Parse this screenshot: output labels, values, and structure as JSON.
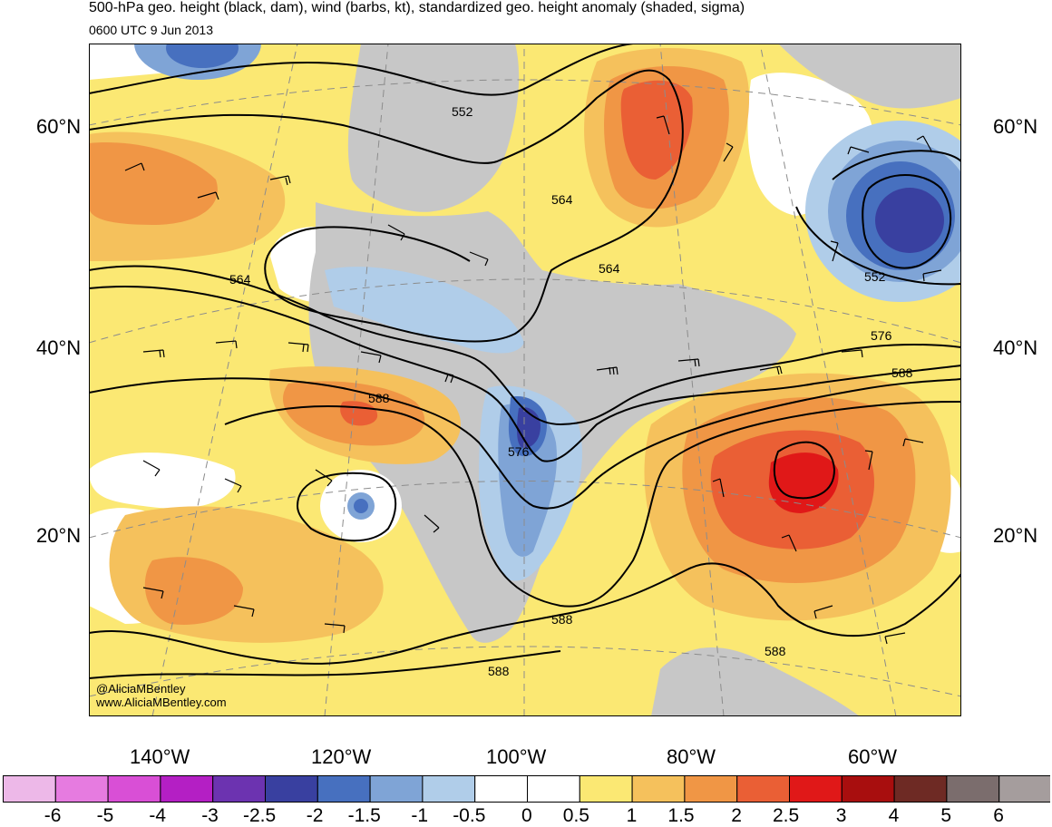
{
  "header": {
    "title": "500-hPa geo. height (black, dam), wind (barbs, kt), standardized geo. height anomaly (shaded, sigma)",
    "subtitle": "0600 UTC 9 Jun 2013"
  },
  "axes": {
    "lat_labels": [
      "60°N",
      "40°N",
      "20°N"
    ],
    "lon_labels": [
      "140°W",
      "120°W",
      "100°W",
      "80°W",
      "60°W"
    ]
  },
  "contour_labels": [
    "552",
    "564",
    "564",
    "564",
    "552",
    "576",
    "588",
    "576",
    "588",
    "588",
    "588",
    "588"
  ],
  "credits": {
    "handle": "@AliciaMBentley",
    "url": "www.AliciaMBentley.com"
  },
  "colorbar": {
    "labels": [
      "-6",
      "-5",
      "-4",
      "-3",
      "-2.5",
      "-2",
      "-1.5",
      "-1",
      "-0.5",
      "0",
      "0.5",
      "1",
      "1.5",
      "2",
      "2.5",
      "3",
      "4",
      "5",
      "6"
    ],
    "colors": [
      "#edb8e8",
      "#e67be0",
      "#d94fd6",
      "#b41fc4",
      "#6c33b0",
      "#3940a0",
      "#4770bf",
      "#7fa4d6",
      "#b0cde9",
      "#ffffff",
      "#ffffff",
      "#fbe873",
      "#f5c15c",
      "#f09645",
      "#ea5f35",
      "#e01818",
      "#a80e0e",
      "#6e2a24",
      "#7b6d6d",
      "#a59d9d"
    ]
  },
  "colors": {
    "land": "#c7c7c7",
    "ocean": "#ffffff",
    "contour": "#000000",
    "gridline": "#8c8c8c"
  }
}
